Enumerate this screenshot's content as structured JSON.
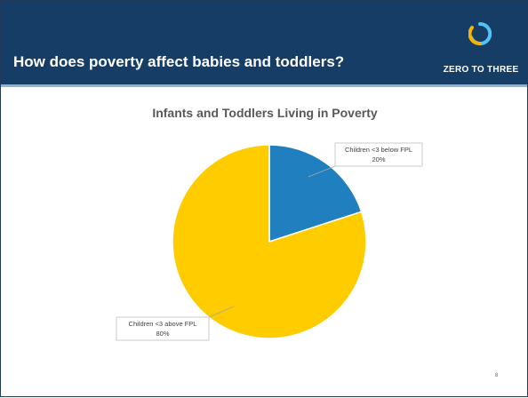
{
  "slide": {
    "title": "How does poverty affect babies and toddlers?",
    "logo_text": "ZERO TO THREE",
    "page_number": "8"
  },
  "colors": {
    "header": "#163d66",
    "accent_line": "#8fb3d1",
    "slice_below": "#1f7fbf",
    "slice_above": "#ffcc00"
  },
  "chart_data": {
    "type": "pie",
    "title": "Infants and Toddlers Living in Poverty",
    "legend": "none",
    "slices": [
      {
        "label": "Children <3 below FPL",
        "value": 20,
        "value_label": "20%",
        "color": "#1f7fbf"
      },
      {
        "label": "Children <3 above FPL",
        "value": 80,
        "value_label": "80%",
        "color": "#ffcc00"
      }
    ]
  }
}
